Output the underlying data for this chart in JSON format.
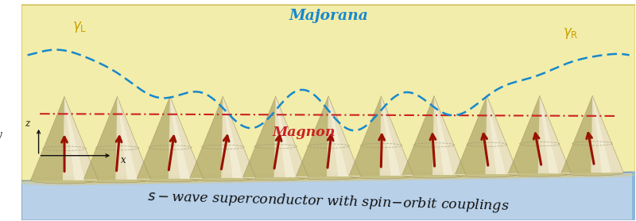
{
  "fig_width": 8.0,
  "fig_height": 2.78,
  "bg_color": "#f2edaa",
  "sc_color": "#b8d0e8",
  "cone_body_color": "#d8cfa0",
  "cone_shadow_color": "#e8e0b8",
  "cone_dark_color": "#b0a870",
  "cone_edge_color": "#a09060",
  "arrow_color": "#991100",
  "blue_wave_color": "#1888cc",
  "red_line_color": "#cc2222",
  "majorana_color": "#1888cc",
  "magnon_color": "#cc2222",
  "gamma_color": "#c8a000",
  "n_cones": 11,
  "title": "$s-$wave superconductor with spin$-$orbit couplings",
  "majorana_text": "Majorana",
  "magnon_text": "Magnon",
  "gamma_L": "$\\gamma_\\mathrm{L}$",
  "gamma_R": "$\\gamma_\\mathrm{R}$"
}
